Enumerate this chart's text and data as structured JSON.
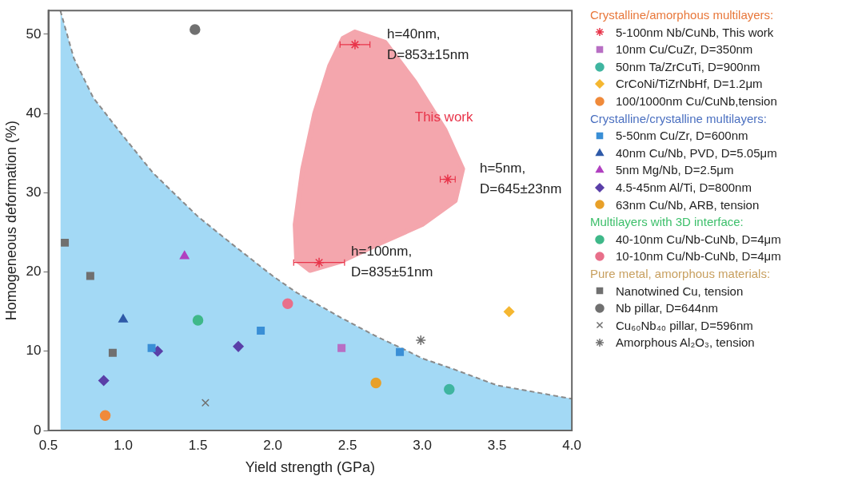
{
  "chart_data": {
    "type": "scatter",
    "xlabel": "Yield strength (GPa)",
    "ylabel": "Homogeneous deformation (%)",
    "xlim": [
      0.5,
      4.0
    ],
    "ylim": [
      0,
      53
    ],
    "xticks": [
      0.5,
      {
        "value": 1,
        "label": "1.0"
      },
      1.5,
      {
        "value": 2,
        "label": "2.0"
      },
      2.5,
      {
        "value": 3,
        "label": "3.0"
      },
      3.5,
      {
        "value": 4,
        "label": "4.0"
      }
    ],
    "yticks": [
      0,
      10,
      20,
      30,
      40,
      50
    ],
    "grid": false,
    "legend": "right",
    "legend_title": "Crystalline/amorphous multilayers:",
    "annotations": [
      "Crystalline/crystalline multilayers:",
      "Multilayers with 3D interface:",
      "Pure metal, amorphous materials:",
      "This work",
      {
        "text": "h=40nm,\nD=853±15nm",
        "x": 2.55,
        "y": 48.7
      },
      {
        "text": "h=5nm,\nD=645±23nm",
        "x": 3.17,
        "y": 31.7
      },
      {
        "text": "h=100nm,\nD=835±51nm",
        "x": 2.31,
        "y": 21.2
      }
    ],
    "series": [
      {
        "type": "area",
        "color": "#a3d9f5",
        "line_style": "dashed",
        "marker": "none",
        "x": [
          0.58,
          0.67,
          0.8,
          0.99,
          1.2,
          1.5,
          1.73,
          2.0,
          2.16,
          2.46,
          2.7,
          2.85,
          3.0,
          3.2,
          3.5,
          4.0
        ],
        "values": [
          53,
          47,
          42,
          37.4,
          32.5,
          27,
          23.5,
          19.5,
          17.4,
          14.2,
          11.8,
          10.5,
          9.1,
          7.8,
          5.7,
          4.0
        ]
      },
      {
        "name": "5-100nm Nb/CuNb, This work",
        "color": "#e8344a",
        "x": [
          2.55,
          3.17,
          2.31
        ],
        "values": [
          48.7,
          31.7,
          21.2
        ],
        "xerrors": [
          0.1,
          0.05,
          0.17
        ]
      },
      {
        "name": "10nm Cu/CuZr, D=350nm",
        "color": "#b86fc4",
        "marker": "square",
        "x": [
          2.46
        ],
        "values": [
          10.4
        ]
      },
      {
        "name": "50nm Ta/ZrCuTi, D=900nm",
        "color": "#3fb5a0",
        "marker": "circle",
        "x": [
          3.18
        ],
        "values": [
          5.2
        ]
      },
      {
        "name": "CrCoNi/TiZrNbHf, D=1.2μm",
        "color": "#f5b731",
        "marker": "diamond",
        "x": [
          3.58
        ],
        "values": [
          15.0
        ]
      },
      {
        "name": "100/1000nm Cu/CuNb,tension",
        "color": "#f08a3a",
        "marker": "circle",
        "x": [
          0.88
        ],
        "values": [
          1.9
        ]
      },
      {
        "name": "5-50nm Cu/Zr, D=600nm",
        "color": "#3a8fd6",
        "marker": "square",
        "x": [
          1.19,
          1.92,
          2.85
        ],
        "values": [
          10.4,
          12.6,
          9.9
        ]
      },
      {
        "name": "40nm Cu/Nb, PVD, D=5.05μm",
        "color": "#2f5aa8",
        "marker": "triangle",
        "x": [
          1.0
        ],
        "values": [
          14.0
        ]
      },
      {
        "name": "5nm Mg/Nb, D=2.5μm",
        "color": "#b040c0",
        "marker": "triangle",
        "x": [
          1.41
        ],
        "values": [
          22.0
        ]
      },
      {
        "name": "4.5-45nm Al/Ti, D=800nm",
        "color": "#5a3fa8",
        "marker": "diamond",
        "x": [
          0.87,
          1.23,
          1.77
        ],
        "values": [
          6.3,
          10.0,
          10.6
        ]
      },
      {
        "name": "63nm Cu/Nb, ARB, tension",
        "color": "#e8a028",
        "marker": "circle",
        "x": [
          2.69
        ],
        "values": [
          6.0
        ]
      },
      {
        "name": "40-10nm Cu/Nb-CuNb, D=4μm",
        "color": "#3fb889",
        "marker": "circle",
        "x": [
          1.5
        ],
        "values": [
          13.9
        ]
      },
      {
        "name": "10-10nm Cu/Nb-CuNb, D=4μm",
        "color": "#e86f8a",
        "marker": "circle",
        "x": [
          2.1
        ],
        "values": [
          16.0
        ]
      },
      {
        "name": "Nanotwined Cu, tension",
        "color": "#707070",
        "marker": "square",
        "x": [
          0.61,
          0.78,
          0.93
        ],
        "values": [
          23.7,
          19.5,
          9.8
        ]
      },
      {
        "name": "Nb pillar, D=644nm",
        "color": "#707070",
        "marker": "circle",
        "x": [
          1.48
        ],
        "values": [
          50.6
        ]
      },
      {
        "name": "Cu₆₀Nb₄₀ pillar, D=596nm",
        "color": "#707070",
        "marker": "cross",
        "x": [
          1.55
        ],
        "values": [
          3.5
        ]
      },
      {
        "name": "Amorphous Al₂O₃, tension",
        "color": "#707070",
        "x": [
          2.99
        ],
        "values": [
          11.4
        ]
      }
    ]
  }
}
